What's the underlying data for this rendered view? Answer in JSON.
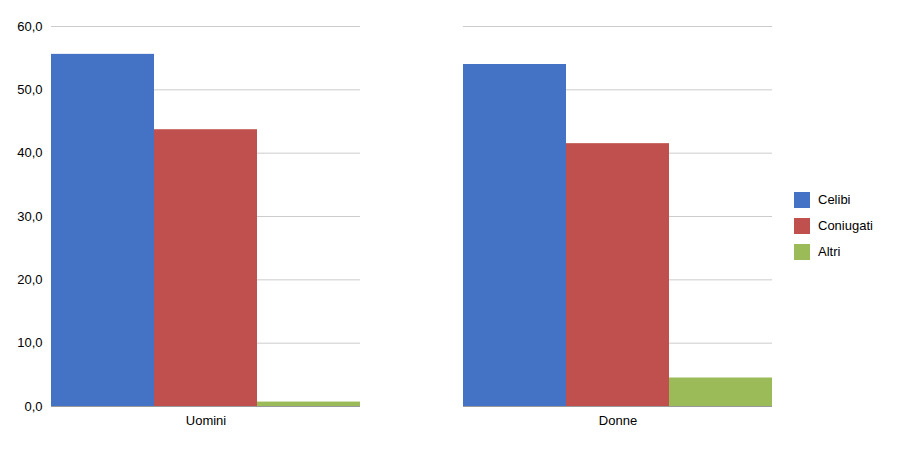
{
  "chart_data": {
    "type": "bar",
    "categories": [
      "Uomini",
      "Donne"
    ],
    "series": [
      {
        "name": "Celibi",
        "color": "#4472C4",
        "values": [
          55.6,
          54.0
        ]
      },
      {
        "name": "Coniugati",
        "color": "#C0504D",
        "values": [
          43.7,
          41.5
        ]
      },
      {
        "name": "Altri",
        "color": "#9BBB59",
        "values": [
          0.7,
          4.5
        ]
      }
    ],
    "ylim": [
      0,
      60
    ],
    "yticks": [
      {
        "value": 0,
        "label": "0,0"
      },
      {
        "value": 10,
        "label": "10,0"
      },
      {
        "value": 20,
        "label": "20,0"
      },
      {
        "value": 30,
        "label": "30,0"
      },
      {
        "value": 40,
        "label": "40,0"
      },
      {
        "value": 50,
        "label": "50,0"
      },
      {
        "value": 60,
        "label": "60,0"
      }
    ],
    "grid": true,
    "legend": "right"
  }
}
